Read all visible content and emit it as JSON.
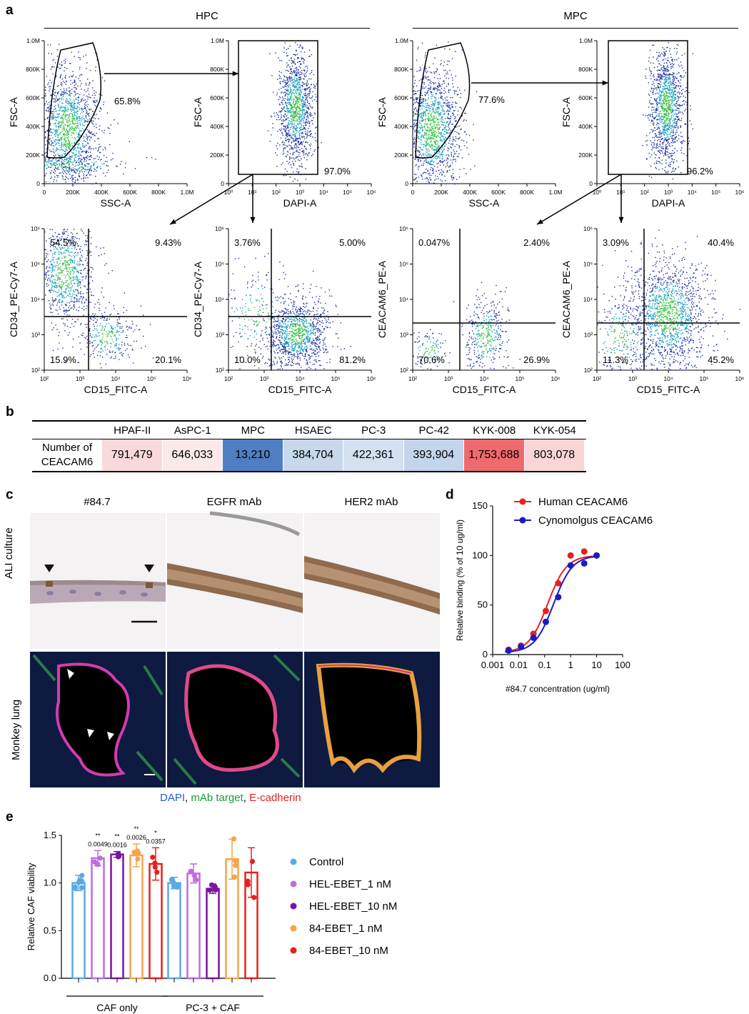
{
  "panels": {
    "a": "a",
    "b": "b",
    "c": "c",
    "d": "d",
    "e": "e"
  },
  "panel_a": {
    "group_left": "HPC",
    "group_right": "MPC",
    "fsc_axis": "FSC-A",
    "ssc_axis": "SSC-A",
    "dapi_axis": "DAPI-A",
    "cd34_axis": "CD34_PE-Cy7-A",
    "cd15_axis": "CD15_FITC-A",
    "ceacam6_axis": "CEACAM6_PE-A",
    "lin_yticks": [
      "1.0M",
      "800K",
      "600K",
      "400K",
      "200K",
      "0"
    ],
    "lin_xticks": [
      "0",
      "200K",
      "400K",
      "600K",
      "800K",
      "1.0M"
    ],
    "log_ticks": [
      "10⁰",
      "10¹",
      "10²",
      "10³",
      "10⁴",
      "10⁵",
      "10⁶"
    ],
    "log2_ticks": [
      "10²",
      "10³",
      "10⁴",
      "10⁵",
      "10⁶"
    ],
    "hpc_gate1": "65.8%",
    "hpc_gate2": "97.0%",
    "mpc_gate1": "77.6%",
    "mpc_gate2": "96.2%",
    "hpc_q1": [
      "54.5%",
      "9.43%",
      "15.9%",
      "20.1%"
    ],
    "hpc_q2": [
      "3.76%",
      "5.00%",
      "10.0%",
      "81.2%"
    ],
    "mpc_q1": [
      "0.047%",
      "2.40%",
      "70.6%",
      "26.9%"
    ],
    "mpc_q2": [
      "3.09%",
      "40.4%",
      "11.3%",
      "45.2%"
    ]
  },
  "panel_b": {
    "row_label_1": "Number of",
    "row_label_2": "CEACAM6",
    "columns": [
      "HPAF-II",
      "AsPC-1",
      "MPC",
      "HSAEC",
      "PC-3",
      "PC-42",
      "KYK-008",
      "KYK-054"
    ],
    "values": [
      "791,479",
      "646,033",
      "13,210",
      "384,704",
      "422,361",
      "393,904",
      "1,753,688",
      "803,078"
    ],
    "colors": [
      "#f9d9dc",
      "#fbe9ea",
      "#4f7fc2",
      "#c7d8ec",
      "#d3e1f1",
      "#c3d5eb",
      "#ef6a6e",
      "#f9d5d8"
    ]
  },
  "panel_c": {
    "col_labels": [
      "#84.7",
      "EGFR mAb",
      "HER2 mAb"
    ],
    "row_labels": [
      "ALI culture",
      "Monkey lung"
    ],
    "caption_dapi": "DAPI",
    "caption_sep1": ", ",
    "caption_target": "mAb target",
    "caption_sep2": ", ",
    "caption_ecad": "E-cadherin"
  },
  "chart_data": [
    {
      "type": "line",
      "xlabel": "#84.7 concentration (ug/ml)",
      "ylabel": "Relative binding (% of 10 ug/ml)",
      "xscale": "log",
      "xlim": [
        0.001,
        100
      ],
      "ylim": [
        0,
        150
      ],
      "xticks": [
        "0.001",
        "0.01",
        "0.1",
        "1",
        "10",
        "100"
      ],
      "yticks": [
        "0",
        "50",
        "100",
        "150"
      ],
      "legend": "top-right",
      "series": [
        {
          "name": "Human CEACAM6",
          "color": "#e8201c",
          "x": [
            0.0041,
            0.0123,
            0.037,
            0.111,
            0.333,
            1,
            3.33,
            10
          ],
          "y": [
            5,
            9,
            21,
            44,
            72,
            100,
            104,
            100
          ]
        },
        {
          "name": "Cynomolgus CEACAM6",
          "color": "#1a1ac8",
          "x": [
            0.0041,
            0.0123,
            0.037,
            0.111,
            0.333,
            1,
            3.33,
            10
          ],
          "y": [
            4,
            8,
            17,
            33,
            58,
            90,
            92,
            100
          ]
        }
      ]
    },
    {
      "type": "bar",
      "ylabel": "Relative CAF viability",
      "ylim": [
        0,
        1.5
      ],
      "yticks": [
        "0.0",
        "0.5",
        "1.0",
        "1.5"
      ],
      "groups": [
        "CAF only",
        "PC-3 + CAF"
      ],
      "legend": "right",
      "series": [
        {
          "name": "Control",
          "color": "#5aa9e6",
          "values": [
            1.0,
            1.0
          ],
          "sd": [
            0.08,
            0.06
          ]
        },
        {
          "name": "HEL-EBET_1 nM",
          "color": "#c06be0",
          "values": [
            1.26,
            1.1
          ],
          "sd": [
            0.08,
            0.1
          ]
        },
        {
          "name": "HEL-EBET_10 nM",
          "color": "#7b14a0",
          "values": [
            1.3,
            0.94
          ],
          "sd": [
            0.03,
            0.05
          ]
        },
        {
          "name": "84-EBET_1 nM",
          "color": "#f7a44c",
          "values": [
            1.29,
            1.25
          ],
          "sd": [
            0.12,
            0.21
          ]
        },
        {
          "name": "84-EBET_10 nM",
          "color": "#e8201c",
          "values": [
            1.2,
            1.11
          ],
          "sd": [
            0.17,
            0.26
          ]
        }
      ],
      "annotations": [
        {
          "stars": "**",
          "p": "0.0049"
        },
        {
          "stars": "**",
          "p": "0.0016"
        },
        {
          "stars": "**",
          "p": "0.0026"
        },
        {
          "stars": "*",
          "p": "0.0357"
        }
      ]
    }
  ]
}
